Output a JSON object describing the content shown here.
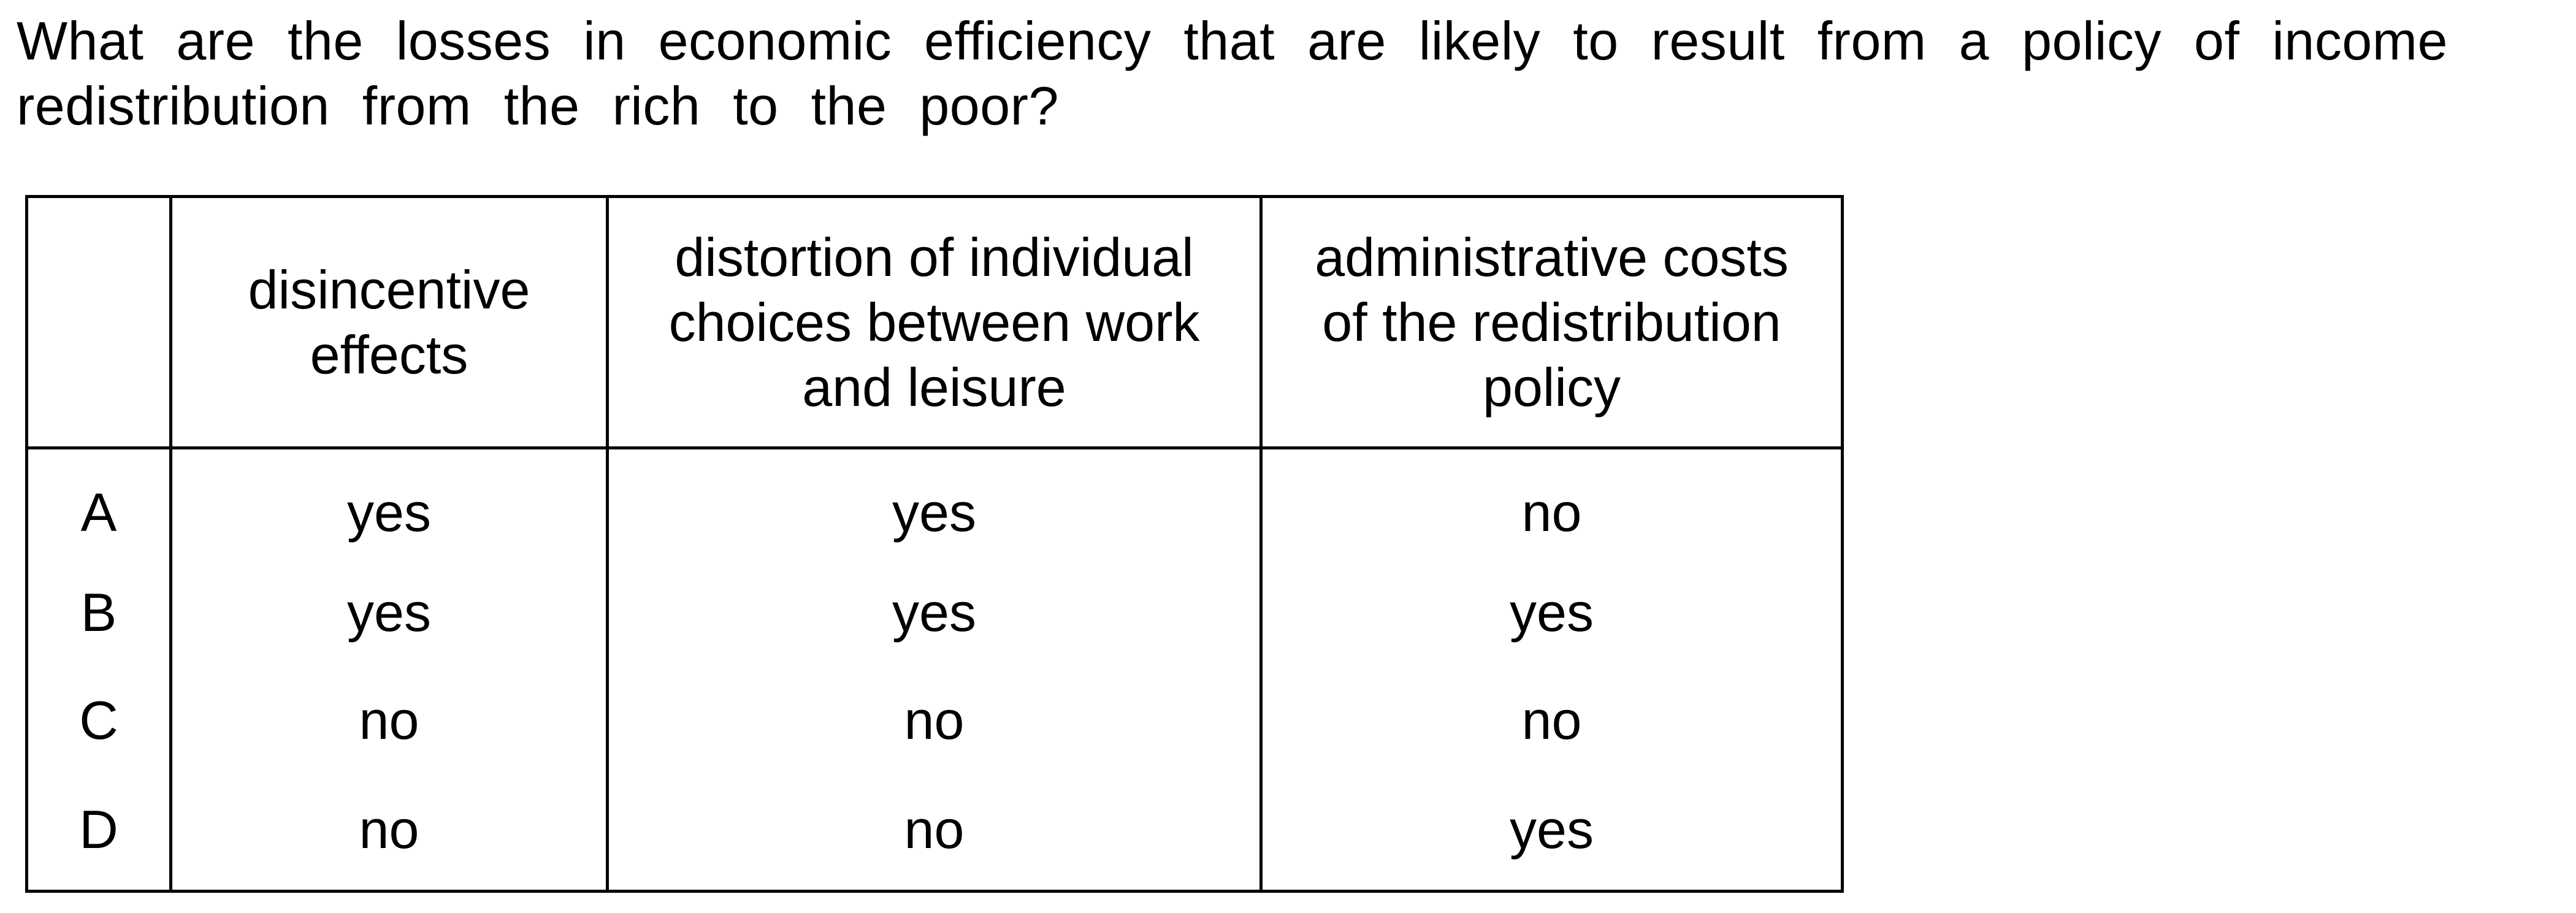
{
  "question": {
    "line1": "What are the losses in economic efficiency that are likely to result from a policy of income",
    "line2": "redistribution from the rich to the poor?"
  },
  "table": {
    "headers": {
      "col1_line1": "disincentive",
      "col1_line2": "effects",
      "col2_line1": "distortion of individual",
      "col2_line2": "choices between work",
      "col2_line3": "and leisure",
      "col3_line1": "administrative costs",
      "col3_line2": "of the redistribution",
      "col3_line3": "policy"
    },
    "rows": [
      {
        "key": "A",
        "c1": "yes",
        "c2": "yes",
        "c3": "no"
      },
      {
        "key": "B",
        "c1": "yes",
        "c2": "yes",
        "c3": "yes"
      },
      {
        "key": "C",
        "c1": "no",
        "c2": "no",
        "c3": "no"
      },
      {
        "key": "D",
        "c1": "no",
        "c2": "no",
        "c3": "yes"
      }
    ]
  }
}
